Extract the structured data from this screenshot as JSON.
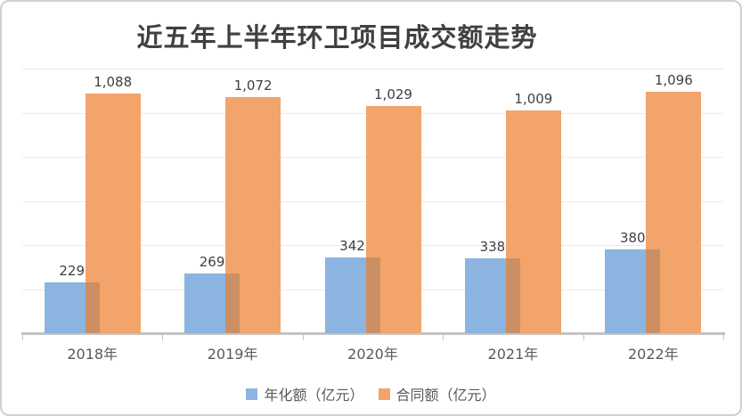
{
  "title": "近五年上半年环卫项目成交额走势",
  "chart_data": {
    "type": "bar",
    "title": "近五年上半年环卫项目成交额走势",
    "categories": [
      "2018年",
      "2019年",
      "2020年",
      "2021年",
      "2022年"
    ],
    "series": [
      {
        "name": "年化额（亿元）",
        "key": "annualized",
        "color": "#8bb5e0",
        "values": [
          229,
          269,
          342,
          338,
          380
        ],
        "labels": [
          "229",
          "269",
          "342",
          "338",
          "380"
        ]
      },
      {
        "name": "合同额（亿元）",
        "key": "contract",
        "color": "#f2a46b",
        "values": [
          1088,
          1072,
          1029,
          1009,
          1096
        ],
        "labels": [
          "1,088",
          "1,072",
          "1,029",
          "1,009",
          "1,096"
        ]
      }
    ],
    "overlap_color": "#cc8f63",
    "xlabel": "",
    "ylabel": "",
    "ylim": [
      0,
      1200
    ],
    "gridline_step": 200,
    "grid": true,
    "legend_position": "bottom"
  },
  "colors": {
    "gridline": "#ebebeb",
    "axis_line": "#c3c3c3",
    "title_text": "#404040",
    "value_label_text": "#3f3f3f",
    "axis_label_text": "#595959",
    "frame_border": "#cfcfcf"
  }
}
